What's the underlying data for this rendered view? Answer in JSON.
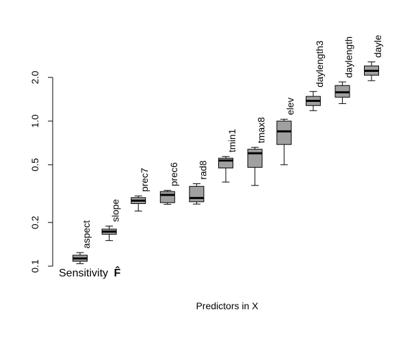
{
  "chart_data": {
    "type": "box",
    "xlabel": "Predictors in X",
    "ylabel": "",
    "y_scale": "log",
    "ylim": [
      0.1,
      2.6
    ],
    "yticks": [
      0.1,
      0.2,
      0.5,
      1.0,
      2.0
    ],
    "ytick_labels": [
      "0.1",
      "0.2",
      "0.5",
      "1.0",
      "2.0"
    ],
    "annotation": "Sensitivity",
    "annotation_symbol": "F̂",
    "box_color": "#a0a0a0",
    "boxes": [
      {
        "label": "aspect",
        "min": 0.104,
        "q1": 0.108,
        "median": 0.113,
        "q3": 0.119,
        "max": 0.124
      },
      {
        "label": "slope",
        "min": 0.15,
        "q1": 0.166,
        "median": 0.173,
        "q3": 0.18,
        "max": 0.189
      },
      {
        "label": "prec7",
        "min": 0.24,
        "q1": 0.27,
        "median": 0.283,
        "q3": 0.297,
        "max": 0.305
      },
      {
        "label": "prec6",
        "min": 0.267,
        "q1": 0.274,
        "median": 0.31,
        "q3": 0.327,
        "max": 0.333
      },
      {
        "label": "rad8",
        "min": 0.268,
        "q1": 0.278,
        "median": 0.295,
        "q3": 0.355,
        "max": 0.37
      },
      {
        "label": "tmin1",
        "min": 0.38,
        "q1": 0.475,
        "median": 0.535,
        "q3": 0.555,
        "max": 0.57
      },
      {
        "label": "tmax8",
        "min": 0.36,
        "q1": 0.48,
        "median": 0.6,
        "q3": 0.64,
        "max": 0.66
      },
      {
        "label": "elev",
        "min": 0.5,
        "q1": 0.69,
        "median": 0.85,
        "q3": 1.0,
        "max": 1.03
      },
      {
        "label": "daylength3",
        "min": 1.18,
        "q1": 1.28,
        "median": 1.38,
        "q3": 1.48,
        "max": 1.6
      },
      {
        "label": "daylength",
        "min": 1.32,
        "q1": 1.46,
        "median": 1.58,
        "q3": 1.76,
        "max": 1.86
      },
      {
        "label": "dayle",
        "min": 1.9,
        "q1": 2.07,
        "median": 2.22,
        "q3": 2.4,
        "max": 2.56
      }
    ]
  }
}
